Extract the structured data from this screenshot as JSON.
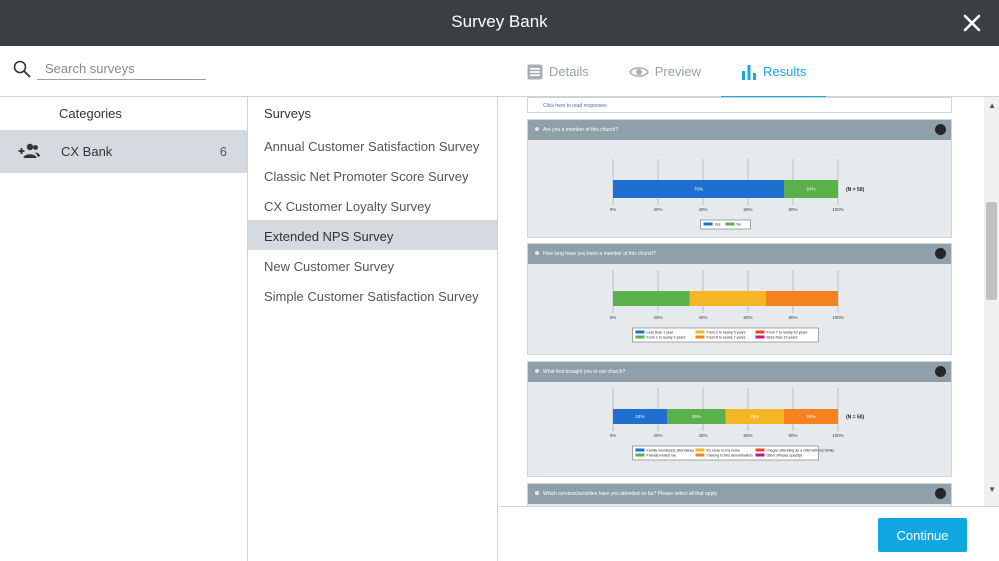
{
  "window": {
    "title": "Survey Bank"
  },
  "search": {
    "placeholder": "Search surveys"
  },
  "tabs": [
    {
      "label": "Details",
      "icon": "list-icon"
    },
    {
      "label": "Preview",
      "icon": "eye-icon"
    },
    {
      "label": "Results",
      "icon": "bar-chart-icon",
      "active": true
    }
  ],
  "categories": {
    "header": "Categories",
    "items": [
      {
        "label": "CX Bank",
        "count": "6",
        "icon": "people-add-icon"
      }
    ]
  },
  "surveys": {
    "header": "Surveys",
    "items": [
      {
        "label": "Annual Customer Satisfaction Survey"
      },
      {
        "label": "Classic Net Promoter Score Survey"
      },
      {
        "label": "CX Customer Loyalty Survey"
      },
      {
        "label": "Extended NPS Survey",
        "selected": true
      },
      {
        "label": "New Customer Survey"
      },
      {
        "label": "Simple Customer Satisfaction Survey"
      }
    ]
  },
  "preview": {
    "top_link": "Click here to read responses",
    "questions": [
      {
        "text": "Are you a member of this church?",
        "n_label": "(N = 50)",
        "ticks": [
          "0%",
          "20%",
          "40%",
          "60%",
          "80%",
          "100%"
        ],
        "segments": [
          {
            "name": "Yes",
            "value": 76,
            "label": "76%",
            "color": "#1f6fcf"
          },
          {
            "name": "No",
            "value": 24,
            "label": "24%",
            "color": "#5ab04b"
          }
        ]
      },
      {
        "text": "How long have you been a member of this church?",
        "n_label": "",
        "ticks": [
          "0%",
          "20%",
          "40%",
          "60%",
          "80%",
          "100%"
        ],
        "segments": [
          {
            "name": "Less than 1 year",
            "value": 0,
            "label": "",
            "color": "#1f6fcf"
          },
          {
            "name": "From 1 to nearly 2 years",
            "value": 34,
            "label": "",
            "color": "#5ab04b"
          },
          {
            "name": "From 2 to nearly 5 years",
            "value": 34,
            "label": "",
            "color": "#f4b625"
          },
          {
            "name": "From 5 to nearly 7 years",
            "value": 32,
            "label": "",
            "color": "#f5821f"
          },
          {
            "name": "From 7 to nearly 10 years",
            "value": 0,
            "label": "",
            "color": "#e8462b"
          },
          {
            "name": "More than 10 years",
            "value": 0,
            "label": "",
            "color": "#c8197a"
          }
        ]
      },
      {
        "text": "What first brought you to our church?",
        "n_label": "(N = 50)",
        "ticks": [
          "0%",
          "20%",
          "40%",
          "60%",
          "80%",
          "100%"
        ],
        "segments": [
          {
            "name": "Family member(s) attendance",
            "value": 24,
            "label": "24%",
            "color": "#1f6fcf"
          },
          {
            "name": "Friends invited me.",
            "value": 26,
            "label": "26%",
            "color": "#5ab04b"
          },
          {
            "name": "It's close to my home",
            "value": 26,
            "label": "26%",
            "color": "#f4b625"
          },
          {
            "name": "I belong to this denomination",
            "value": 24,
            "label": "24%",
            "color": "#f5821f"
          },
          {
            "name": "I began attending as a child with my family",
            "value": 0,
            "label": "",
            "color": "#e8462b"
          },
          {
            "name": "Other (Please specify)",
            "value": 0,
            "label": "",
            "color": "#c8197a"
          }
        ]
      },
      {
        "text": "Which services/activities have you attended so far? Please select all that apply.",
        "n_label": "",
        "ticks": [],
        "segments": []
      }
    ]
  },
  "footer": {
    "continue_label": "Continue"
  },
  "colors": {
    "accent": "#1aa8e0",
    "titlebar": "#3a3f44",
    "selected": "#d4dadf"
  }
}
